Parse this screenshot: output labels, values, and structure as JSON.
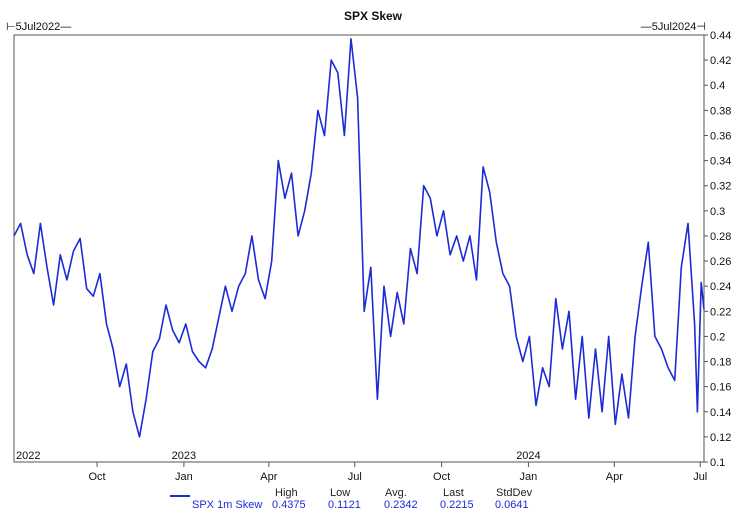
{
  "chart_data": {
    "type": "line",
    "title": "SPX Skew",
    "range_start_label": "5Jul2022",
    "range_end_label": "5Jul2024",
    "ylim": [
      0.1,
      0.44
    ],
    "y_ticks": [
      "0.44",
      "0.42",
      "0.4",
      "0.38",
      "0.36",
      "0.34",
      "0.32",
      "0.3",
      "0.28",
      "0.26",
      "0.24",
      "0.22",
      "0.2",
      "0.18",
      "0.16",
      "0.14",
      "0.12",
      "0.1"
    ],
    "month_ticks": [
      "Oct",
      "Jan",
      "Apr",
      "Jul",
      "Oct",
      "Jan",
      "Apr",
      "Jul"
    ],
    "year_labels": [
      "2022",
      "2023",
      "2024"
    ],
    "grid": false,
    "legend_position": "bottom",
    "series": [
      {
        "name": "SPX 1m Skew",
        "color": "#1c2bd6",
        "points": [
          [
            "2022-07-05",
            0.28
          ],
          [
            "2022-07-12",
            0.29
          ],
          [
            "2022-07-19",
            0.265
          ],
          [
            "2022-07-26",
            0.25
          ],
          [
            "2022-08-02",
            0.29
          ],
          [
            "2022-08-09",
            0.255
          ],
          [
            "2022-08-16",
            0.225
          ],
          [
            "2022-08-23",
            0.265
          ],
          [
            "2022-08-30",
            0.245
          ],
          [
            "2022-09-06",
            0.268
          ],
          [
            "2022-09-13",
            0.278
          ],
          [
            "2022-09-20",
            0.238
          ],
          [
            "2022-09-27",
            0.232
          ],
          [
            "2022-10-04",
            0.25
          ],
          [
            "2022-10-11",
            0.21
          ],
          [
            "2022-10-18",
            0.19
          ],
          [
            "2022-10-25",
            0.16
          ],
          [
            "2022-11-01",
            0.178
          ],
          [
            "2022-11-08",
            0.14
          ],
          [
            "2022-11-15",
            0.12
          ],
          [
            "2022-11-22",
            0.15
          ],
          [
            "2022-11-29",
            0.188
          ],
          [
            "2022-12-06",
            0.198
          ],
          [
            "2022-12-13",
            0.225
          ],
          [
            "2022-12-20",
            0.205
          ],
          [
            "2022-12-27",
            0.195
          ],
          [
            "2023-01-03",
            0.21
          ],
          [
            "2023-01-10",
            0.188
          ],
          [
            "2023-01-17",
            0.18
          ],
          [
            "2023-01-24",
            0.175
          ],
          [
            "2023-01-31",
            0.19
          ],
          [
            "2023-02-07",
            0.215
          ],
          [
            "2023-02-14",
            0.24
          ],
          [
            "2023-02-21",
            0.22
          ],
          [
            "2023-02-28",
            0.24
          ],
          [
            "2023-03-07",
            0.25
          ],
          [
            "2023-03-14",
            0.28
          ],
          [
            "2023-03-21",
            0.245
          ],
          [
            "2023-03-28",
            0.23
          ],
          [
            "2023-04-04",
            0.26
          ],
          [
            "2023-04-11",
            0.34
          ],
          [
            "2023-04-18",
            0.31
          ],
          [
            "2023-04-25",
            0.33
          ],
          [
            "2023-05-02",
            0.28
          ],
          [
            "2023-05-09",
            0.3
          ],
          [
            "2023-05-16",
            0.33
          ],
          [
            "2023-05-23",
            0.38
          ],
          [
            "2023-05-30",
            0.36
          ],
          [
            "2023-06-06",
            0.42
          ],
          [
            "2023-06-13",
            0.41
          ],
          [
            "2023-06-20",
            0.36
          ],
          [
            "2023-06-27",
            0.437
          ],
          [
            "2023-07-04",
            0.39
          ],
          [
            "2023-07-11",
            0.22
          ],
          [
            "2023-07-18",
            0.255
          ],
          [
            "2023-07-25",
            0.15
          ],
          [
            "2023-08-01",
            0.24
          ],
          [
            "2023-08-08",
            0.2
          ],
          [
            "2023-08-15",
            0.235
          ],
          [
            "2023-08-22",
            0.21
          ],
          [
            "2023-08-29",
            0.27
          ],
          [
            "2023-09-05",
            0.25
          ],
          [
            "2023-09-12",
            0.32
          ],
          [
            "2023-09-19",
            0.31
          ],
          [
            "2023-09-26",
            0.28
          ],
          [
            "2023-10-03",
            0.3
          ],
          [
            "2023-10-10",
            0.265
          ],
          [
            "2023-10-17",
            0.28
          ],
          [
            "2023-10-24",
            0.26
          ],
          [
            "2023-10-31",
            0.28
          ],
          [
            "2023-11-07",
            0.245
          ],
          [
            "2023-11-14",
            0.335
          ],
          [
            "2023-11-21",
            0.315
          ],
          [
            "2023-11-28",
            0.275
          ],
          [
            "2023-12-05",
            0.25
          ],
          [
            "2023-12-12",
            0.24
          ],
          [
            "2023-12-19",
            0.2
          ],
          [
            "2023-12-26",
            0.18
          ],
          [
            "2024-01-02",
            0.2
          ],
          [
            "2024-01-09",
            0.145
          ],
          [
            "2024-01-16",
            0.175
          ],
          [
            "2024-01-23",
            0.16
          ],
          [
            "2024-01-30",
            0.23
          ],
          [
            "2024-02-06",
            0.19
          ],
          [
            "2024-02-13",
            0.22
          ],
          [
            "2024-02-20",
            0.15
          ],
          [
            "2024-02-27",
            0.2
          ],
          [
            "2024-03-05",
            0.135
          ],
          [
            "2024-03-12",
            0.19
          ],
          [
            "2024-03-19",
            0.14
          ],
          [
            "2024-03-26",
            0.2
          ],
          [
            "2024-04-02",
            0.13
          ],
          [
            "2024-04-09",
            0.17
          ],
          [
            "2024-04-16",
            0.135
          ],
          [
            "2024-04-23",
            0.2
          ],
          [
            "2024-04-30",
            0.24
          ],
          [
            "2024-05-07",
            0.275
          ],
          [
            "2024-05-14",
            0.2
          ],
          [
            "2024-05-21",
            0.19
          ],
          [
            "2024-05-28",
            0.175
          ],
          [
            "2024-06-04",
            0.165
          ],
          [
            "2024-06-11",
            0.255
          ],
          [
            "2024-06-18",
            0.29
          ],
          [
            "2024-06-25",
            0.21
          ],
          [
            "2024-06-28",
            0.14
          ],
          [
            "2024-07-02",
            0.243
          ],
          [
            "2024-07-05",
            0.2215
          ]
        ]
      }
    ],
    "stats": {
      "headers": [
        "High",
        "Low",
        "Avg.",
        "Last",
        "StdDev"
      ],
      "values": [
        "0.4375",
        "0.1121",
        "0.2342",
        "0.2215",
        "0.0641"
      ]
    }
  }
}
